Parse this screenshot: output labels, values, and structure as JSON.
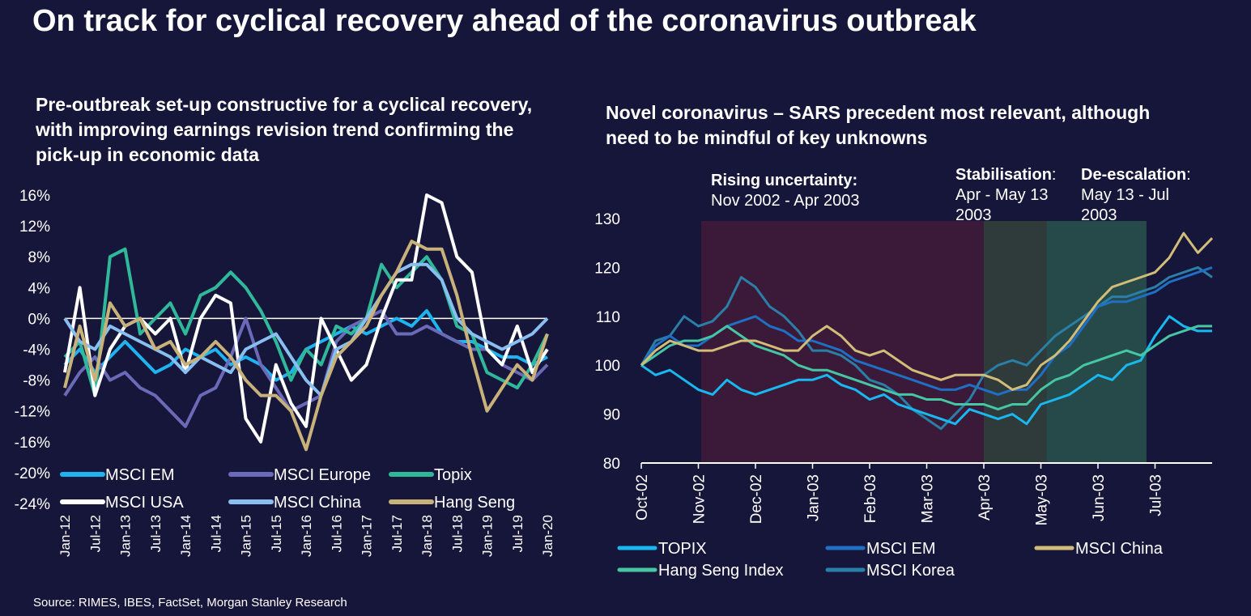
{
  "title": "On track for cyclical recovery ahead of the coronavirus outbreak",
  "left_subtitle": "Pre-outbreak set-up constructive for a cyclical recovery, with improving earnings revision trend confirming the pick-up in economic data",
  "right_subtitle": "Novel coronavirus – SARS precedent most relevant, although need to be mindful of key unknowns",
  "annotations": {
    "rising_title": "Rising uncertainty:",
    "rising_range": "Nov 2002 - Apr 2003",
    "stab_title": "Stabilisation",
    "stab_colon": ":",
    "stab_range": "Apr - May 13 2003",
    "deesc_title": "De-escalation",
    "deesc_colon": ":",
    "deesc_range": "May 13 - Jul 2003"
  },
  "source": "Source: RIMES, IBES, FactSet, Morgan Stanley Research",
  "colors": {
    "background": "#16163a",
    "msci_em": "#1fb4f0",
    "msci_europe": "#6a6ab8",
    "topix_left": "#2fb89a",
    "msci_usa": "#ffffff",
    "msci_china_left": "#88bff0",
    "hang_seng_left": "#c8b27a",
    "topix_right": "#18b8f0",
    "msci_em_right": "#1f6fc4",
    "msci_china_right": "#d2bd78",
    "hang_seng_index": "#45c7a4",
    "msci_korea": "#2a7fa6",
    "rising_band": "#3a1a38",
    "stab_band": "#2f3a3a",
    "deesc_band": "#264a4a"
  },
  "chart_data": [
    {
      "type": "line",
      "title": "Pre-outbreak set-up constructive for a cyclical recovery, with improving earnings revision trend confirming the pick-up in economic data",
      "xlabel": "",
      "ylabel": "",
      "ylim": [
        -24,
        16
      ],
      "yticks": [
        "16%",
        "12%",
        "8%",
        "4%",
        "0%",
        "-4%",
        "-8%",
        "-12%",
        "-16%",
        "-20%",
        "-24%"
      ],
      "xticks": [
        "Jan-12",
        "Jul-12",
        "Jan-13",
        "Jul-13",
        "Jan-14",
        "Jul-14",
        "Jan-15",
        "Jul-15",
        "Jan-16",
        "Jul-16",
        "Jan-17",
        "Jul-17",
        "Jan-18",
        "Jul-18",
        "Jan-19",
        "Jul-19",
        "Jan-20"
      ],
      "x": [
        0,
        0.5,
        1,
        1.5,
        2,
        2.5,
        3,
        3.5,
        4,
        4.5,
        5,
        5.5,
        6,
        6.5,
        7,
        7.5,
        8,
        8.5,
        9,
        9.5,
        10,
        10.5,
        11,
        11.5,
        12,
        12.5,
        13,
        13.5,
        14,
        14.5,
        15,
        15.5,
        16
      ],
      "legend": [
        "MSCI EM",
        "MSCI Europe",
        "Topix",
        "MSCI USA",
        "MSCI China",
        "Hang Seng"
      ],
      "series": [
        {
          "name": "MSCI EM",
          "values": [
            -6,
            -4,
            -7,
            -5,
            -3,
            -5,
            -7,
            -6,
            -4,
            -5,
            -4,
            -6,
            -5,
            -6,
            -8,
            -7,
            -4,
            -3,
            -2,
            -1,
            -2,
            -1,
            0,
            -1,
            1,
            -2,
            -3,
            -3,
            -4,
            -5,
            -5,
            -6,
            -5
          ]
        },
        {
          "name": "MSCI Europe",
          "values": [
            -10,
            -7,
            -5,
            -8,
            -7,
            -9,
            -10,
            -12,
            -14,
            -10,
            -9,
            -5,
            0,
            -6,
            -9,
            -12,
            -11,
            -10,
            -3,
            -1,
            0,
            1,
            -2,
            -2,
            -1,
            -2,
            -3,
            -4,
            -4,
            -6,
            -7,
            -8,
            -6
          ]
        },
        {
          "name": "Topix",
          "values": [
            -5,
            -3,
            -10,
            8,
            9,
            -2,
            0,
            2,
            -2,
            3,
            4,
            6,
            4,
            1,
            -3,
            -8,
            -4,
            -6,
            -1,
            -2,
            0,
            7,
            4,
            6,
            8,
            5,
            -1,
            -2,
            -7,
            -8,
            -9,
            -6,
            -2
          ]
        },
        {
          "name": "MSCI USA",
          "values": [
            -7,
            4,
            -10,
            -4,
            -1,
            0,
            -2,
            0,
            -7,
            0,
            3,
            2,
            -13,
            -16,
            -6,
            -11,
            -14,
            0,
            -4,
            -8,
            -6,
            0,
            5,
            5,
            16,
            15,
            8,
            6,
            -4,
            -6,
            -1,
            -7,
            -4
          ]
        },
        {
          "name": "MSCI China",
          "values": [
            0,
            -3,
            -4,
            -1,
            -2,
            -3,
            -4,
            -5,
            -7,
            -5,
            -6,
            -7,
            -4,
            -3,
            -2,
            -5,
            -8,
            -10,
            -4,
            -3,
            0,
            3,
            6,
            7,
            7,
            5,
            0,
            -2,
            -3,
            -4,
            -3,
            -2,
            0
          ]
        },
        {
          "name": "Hang Seng",
          "values": [
            -9,
            -1,
            -8,
            2,
            -1,
            0,
            -4,
            -3,
            -6,
            -5,
            -3,
            -5,
            -8,
            -10,
            -10,
            -12,
            -17,
            -10,
            -5,
            -3,
            -1,
            3,
            6,
            10,
            9,
            9,
            3,
            -5,
            -12,
            -9,
            -6,
            -8,
            -2
          ]
        }
      ]
    },
    {
      "type": "line",
      "title": "Novel coronavirus – SARS precedent most relevant, although need to be mindful of key unknowns",
      "xlabel": "",
      "ylabel": "",
      "ylim": [
        80,
        130
      ],
      "yticks": [
        "130",
        "120",
        "110",
        "100",
        "90",
        "80"
      ],
      "xticks": [
        "Oct-02",
        "Nov-02",
        "Dec-02",
        "Jan-03",
        "Feb-03",
        "Mar-03",
        "Apr-03",
        "May-03",
        "Jun-03",
        "Jul-03"
      ],
      "x": [
        0,
        0.25,
        0.5,
        0.75,
        1,
        1.25,
        1.5,
        1.75,
        2,
        2.25,
        2.5,
        2.75,
        3,
        3.25,
        3.5,
        3.75,
        4,
        4.25,
        4.5,
        4.75,
        5,
        5.25,
        5.5,
        5.75,
        6,
        6.25,
        6.5,
        6.75,
        7,
        7.25,
        7.5,
        7.75,
        8,
        8.25,
        8.5,
        8.75,
        9,
        9.25,
        9.5,
        9.75,
        10
      ],
      "bands": [
        {
          "label": "Rising uncertainty",
          "from": 1.05,
          "to": 6.0
        },
        {
          "label": "Stabilisation",
          "from": 6.0,
          "to": 7.1
        },
        {
          "label": "De-escalation",
          "from": 7.1,
          "to": 8.85
        }
      ],
      "legend": [
        "TOPIX",
        "MSCI EM",
        "MSCI China",
        "Hang Seng Index",
        "MSCI Korea"
      ],
      "series": [
        {
          "name": "TOPIX",
          "values": [
            100,
            98,
            99,
            97,
            95,
            94,
            97,
            95,
            94,
            95,
            96,
            97,
            97,
            98,
            96,
            95,
            93,
            94,
            92,
            91,
            90,
            89,
            88,
            91,
            90,
            89,
            90,
            88,
            92,
            93,
            94,
            96,
            98,
            97,
            100,
            101,
            106,
            110,
            108,
            107,
            107
          ]
        },
        {
          "name": "MSCI EM",
          "values": [
            100,
            104,
            106,
            104,
            104,
            106,
            108,
            109,
            110,
            108,
            107,
            105,
            105,
            104,
            103,
            101,
            100,
            99,
            98,
            97,
            96,
            95,
            95,
            96,
            95,
            94,
            95,
            95,
            98,
            102,
            104,
            108,
            112,
            113,
            113,
            114,
            115,
            117,
            118,
            119,
            120
          ]
        },
        {
          "name": "MSCI China",
          "values": [
            100,
            103,
            105,
            104,
            103,
            103,
            104,
            105,
            105,
            104,
            103,
            103,
            106,
            108,
            106,
            103,
            102,
            103,
            101,
            99,
            98,
            97,
            98,
            98,
            98,
            97,
            95,
            96,
            100,
            102,
            105,
            109,
            113,
            116,
            117,
            118,
            119,
            122,
            127,
            123,
            126
          ]
        },
        {
          "name": "Hang Seng Index",
          "values": [
            100,
            102,
            104,
            105,
            105,
            106,
            108,
            106,
            104,
            103,
            102,
            100,
            99,
            99,
            98,
            97,
            96,
            95,
            94,
            94,
            93,
            93,
            92,
            92,
            92,
            91,
            92,
            92,
            95,
            97,
            98,
            100,
            101,
            102,
            103,
            102,
            104,
            106,
            107,
            108,
            108
          ]
        },
        {
          "name": "MSCI Korea",
          "values": [
            100,
            105,
            106,
            110,
            108,
            109,
            112,
            118,
            116,
            112,
            110,
            107,
            103,
            103,
            102,
            100,
            97,
            96,
            94,
            91,
            89,
            87,
            90,
            93,
            98,
            100,
            101,
            100,
            103,
            106,
            108,
            110,
            112,
            114,
            114,
            115,
            116,
            118,
            119,
            120,
            118
          ]
        }
      ]
    }
  ]
}
